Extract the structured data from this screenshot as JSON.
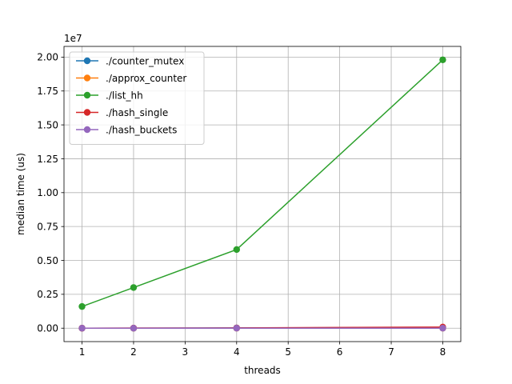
{
  "chart_data": {
    "type": "line",
    "xlabel": "threads",
    "ylabel": "median time (us)",
    "offset_label": "1e7",
    "x": [
      1,
      2,
      4,
      8
    ],
    "xlim": [
      0.65,
      8.35
    ],
    "ylim": [
      -0.099,
      2.079
    ],
    "x_ticks": [
      1,
      2,
      3,
      4,
      5,
      6,
      7,
      8
    ],
    "y_ticks": [
      0.0,
      0.25,
      0.5,
      0.75,
      1.0,
      1.25,
      1.5,
      1.75,
      2.0
    ],
    "y_tick_labels": [
      "0.00",
      "0.25",
      "0.50",
      "0.75",
      "1.00",
      "1.25",
      "1.50",
      "1.75",
      "2.00"
    ],
    "grid": true,
    "legend_position": "top-left",
    "series": [
      {
        "name": "./counter_mutex",
        "color": "#1f77b4",
        "values": [
          0.0,
          0.0,
          0.002,
          0.005
        ]
      },
      {
        "name": "./approx_counter",
        "color": "#ff7f0e",
        "values": [
          0.0,
          0.0,
          0.0,
          0.0
        ]
      },
      {
        "name": "./list_hh",
        "color": "#2ca02c",
        "values": [
          0.16,
          0.3,
          0.58,
          1.98
        ]
      },
      {
        "name": "./hash_single",
        "color": "#d62728",
        "values": [
          0.0,
          0.001,
          0.002,
          0.008
        ]
      },
      {
        "name": "./hash_buckets",
        "color": "#9467bd",
        "values": [
          0.0,
          0.0,
          0.0,
          0.0
        ]
      }
    ]
  }
}
